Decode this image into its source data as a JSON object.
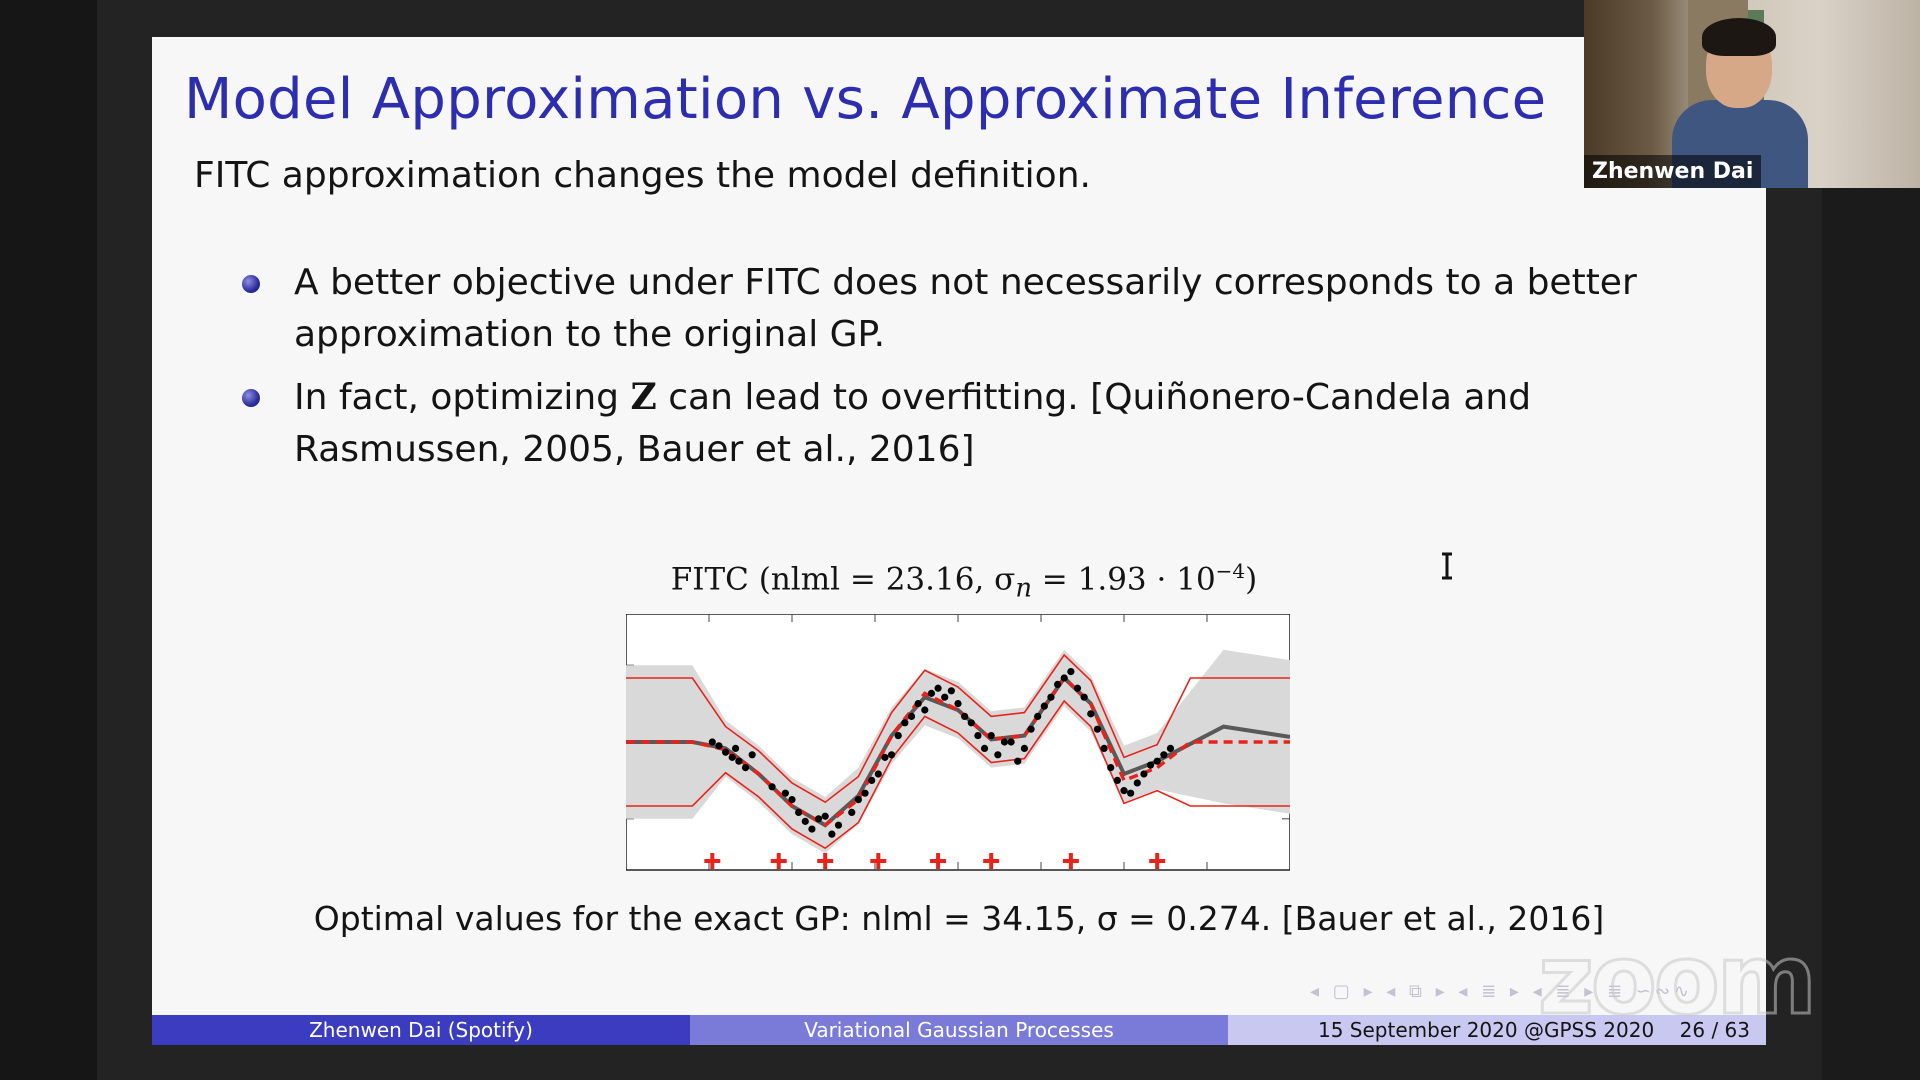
{
  "slide": {
    "title": "Model Approximation vs. Approximate Inference",
    "subtitle": "FITC approximation changes the model definition.",
    "bullets": [
      {
        "text": "A better objective under FITC does not necessarily corresponds to a better approximation to the original GP."
      },
      {
        "before": "In fact, optimizing ",
        "bold": "Z",
        "after": " can lead to overfitting. [Quiñonero-Candela and Rasmussen, 2005, Bauer et al., 2016]"
      }
    ],
    "figure_title": "FITC (nlml = 23.16, σ",
    "figure_title_sub": "n",
    "figure_title_mid": " = 1.93 · 10",
    "figure_title_sup": "−4",
    "figure_title_end": ")",
    "caption": "Optimal values for the exact GP: nlml = 34.15, σ = 0.274. [Bauer et al., 2016]",
    "nav_symbols": "◂ ▢ ▸ ◂ ⧉ ▸ ◂ ≣ ▸ ◂ ≣ ▸ ≣ ∽∾∿"
  },
  "footer": {
    "author": "Zhenwen Dai (Spotify)",
    "talk_title": "Variational Gaussian Processes",
    "date": "15 September 2020 @GPSS 2020",
    "pages": "26 / 63"
  },
  "webcam": {
    "name": "Zhenwen Dai"
  },
  "watermark": "zoom",
  "colors": {
    "title": "#2d2db0",
    "fitc_mean": "#e8231b",
    "exact_mean": "#595959",
    "band": "#d9d9d9",
    "footer_dark": "#3c3cc0",
    "footer_mid": "#7a7ad8",
    "footer_light": "#c8c8f0"
  },
  "chart_data": {
    "type": "scatter",
    "title": "FITC (nlml = 23.16, σn = 1.93 · 10^-4)",
    "xlabel": "",
    "ylabel": "",
    "xlim": [
      0,
      1
    ],
    "ylim": [
      -1,
      1
    ],
    "grid": false,
    "series": [
      {
        "values": [
          [
            0.13,
            0.0
          ],
          [
            0.14,
            -0.03
          ],
          [
            0.15,
            -0.08
          ],
          [
            0.16,
            -0.12
          ],
          [
            0.165,
            -0.05
          ],
          [
            0.17,
            -0.15
          ],
          [
            0.18,
            -0.2
          ],
          [
            0.19,
            -0.1
          ],
          [
            0.22,
            -0.35
          ],
          [
            0.24,
            -0.4
          ],
          [
            0.25,
            -0.45
          ],
          [
            0.26,
            -0.55
          ],
          [
            0.27,
            -0.62
          ],
          [
            0.28,
            -0.68
          ],
          [
            0.29,
            -0.6
          ],
          [
            0.3,
            -0.58
          ],
          [
            0.31,
            -0.72
          ],
          [
            0.32,
            -0.65
          ],
          [
            0.34,
            -0.55
          ],
          [
            0.35,
            -0.45
          ],
          [
            0.36,
            -0.4
          ],
          [
            0.37,
            -0.3
          ],
          [
            0.38,
            -0.25
          ],
          [
            0.39,
            -0.12
          ],
          [
            0.4,
            -0.1
          ],
          [
            0.41,
            0.05
          ],
          [
            0.42,
            0.15
          ],
          [
            0.43,
            0.2
          ],
          [
            0.44,
            0.3
          ],
          [
            0.45,
            0.25
          ],
          [
            0.46,
            0.38
          ],
          [
            0.47,
            0.42
          ],
          [
            0.48,
            0.35
          ],
          [
            0.49,
            0.4
          ],
          [
            0.5,
            0.3
          ],
          [
            0.51,
            0.2
          ],
          [
            0.52,
            0.15
          ],
          [
            0.53,
            0.05
          ],
          [
            0.54,
            -0.05
          ],
          [
            0.55,
            0.05
          ],
          [
            0.56,
            -0.1
          ],
          [
            0.57,
            0.0
          ],
          [
            0.58,
            0.0
          ],
          [
            0.59,
            -0.15
          ],
          [
            0.6,
            -0.05
          ],
          [
            0.61,
            0.1
          ],
          [
            0.62,
            0.2
          ],
          [
            0.63,
            0.28
          ],
          [
            0.64,
            0.35
          ],
          [
            0.65,
            0.45
          ],
          [
            0.66,
            0.5
          ],
          [
            0.67,
            0.55
          ],
          [
            0.68,
            0.42
          ],
          [
            0.69,
            0.35
          ],
          [
            0.7,
            0.22
          ],
          [
            0.71,
            0.1
          ],
          [
            0.72,
            -0.05
          ],
          [
            0.73,
            -0.2
          ],
          [
            0.74,
            -0.3
          ],
          [
            0.75,
            -0.38
          ],
          [
            0.76,
            -0.4
          ],
          [
            0.77,
            -0.32
          ],
          [
            0.78,
            -0.25
          ],
          [
            0.79,
            -0.18
          ],
          [
            0.8,
            -0.15
          ],
          [
            0.81,
            -0.1
          ],
          [
            0.82,
            -0.05
          ]
        ]
      }
    ],
    "fitc_mean": [
      [
        0,
        0.0
      ],
      [
        0.1,
        0.0
      ],
      [
        0.15,
        -0.06
      ],
      [
        0.2,
        -0.25
      ],
      [
        0.25,
        -0.5
      ],
      [
        0.3,
        -0.65
      ],
      [
        0.35,
        -0.45
      ],
      [
        0.4,
        0.05
      ],
      [
        0.45,
        0.38
      ],
      [
        0.5,
        0.25
      ],
      [
        0.55,
        0.02
      ],
      [
        0.6,
        0.05
      ],
      [
        0.66,
        0.5
      ],
      [
        0.7,
        0.3
      ],
      [
        0.75,
        -0.3
      ],
      [
        0.8,
        -0.2
      ],
      [
        0.85,
        0.0
      ],
      [
        1,
        0.0
      ]
    ],
    "exact_mean": [
      [
        0,
        0.0
      ],
      [
        0.1,
        0.0
      ],
      [
        0.15,
        -0.05
      ],
      [
        0.2,
        -0.25
      ],
      [
        0.25,
        -0.5
      ],
      [
        0.3,
        -0.65
      ],
      [
        0.35,
        -0.42
      ],
      [
        0.4,
        0.05
      ],
      [
        0.45,
        0.35
      ],
      [
        0.5,
        0.25
      ],
      [
        0.55,
        0.02
      ],
      [
        0.6,
        0.05
      ],
      [
        0.66,
        0.5
      ],
      [
        0.7,
        0.3
      ],
      [
        0.75,
        -0.25
      ],
      [
        0.8,
        -0.15
      ],
      [
        0.9,
        0.12
      ],
      [
        1,
        0.04
      ]
    ],
    "inducing_points": [
      0.13,
      0.23,
      0.3,
      0.38,
      0.47,
      0.55,
      0.67,
      0.8
    ]
  }
}
